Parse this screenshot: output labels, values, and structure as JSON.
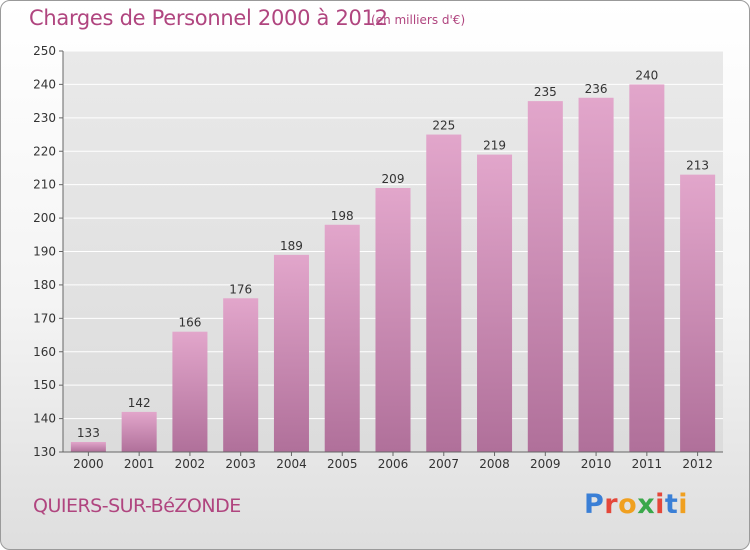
{
  "header": {
    "title": "Charges de Personnel 2000 à 2012",
    "subtitle": "(en milliers d'€)"
  },
  "footer": {
    "commune": "QUIERS-SUR-BéZONDE",
    "brand_letters": [
      "P",
      "r",
      "o",
      "x",
      "i",
      "t",
      "i"
    ],
    "brand_colors": [
      "#3a7fd6",
      "#e4473a",
      "#f0a020",
      "#3aa84a",
      "#e4473a",
      "#3a7fd6",
      "#f0a020"
    ]
  },
  "colors": {
    "bar_top": "#e2a6cb",
    "bar_bottom": "#b0709a",
    "accent": "#b0457f"
  },
  "chart_data": {
    "type": "bar",
    "categories": [
      "2000",
      "2001",
      "2002",
      "2003",
      "2004",
      "2005",
      "2006",
      "2007",
      "2008",
      "2009",
      "2010",
      "2011",
      "2012"
    ],
    "values": [
      133,
      142,
      166,
      176,
      189,
      198,
      209,
      225,
      219,
      235,
      236,
      240,
      213
    ],
    "ylim": [
      130,
      250
    ],
    "yticks": [
      130,
      140,
      150,
      160,
      170,
      180,
      190,
      200,
      210,
      220,
      230,
      240,
      250
    ],
    "grid": true,
    "xlabel": "",
    "ylabel": ""
  }
}
